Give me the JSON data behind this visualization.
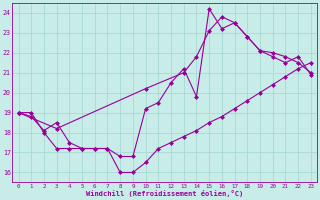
{
  "xlabel": "Windchill (Refroidissement éolien,°C)",
  "bg_color": "#c8ece8",
  "grid_color": "#a8d8d4",
  "line_color": "#990099",
  "xlim": [
    -0.5,
    23.5
  ],
  "ylim": [
    15.5,
    24.5
  ],
  "xticks": [
    0,
    1,
    2,
    3,
    4,
    5,
    6,
    7,
    8,
    9,
    10,
    11,
    12,
    13,
    14,
    15,
    16,
    17,
    18,
    19,
    20,
    21,
    22,
    23
  ],
  "yticks": [
    16,
    17,
    18,
    19,
    20,
    21,
    22,
    23,
    24
  ],
  "line1_x": [
    0,
    1,
    2,
    3,
    4,
    5,
    6,
    7,
    8,
    9,
    10,
    11,
    12,
    13,
    14,
    15,
    16,
    17,
    18,
    19,
    20,
    21,
    22,
    23
  ],
  "line1_y": [
    19.0,
    18.8,
    18.1,
    18.5,
    17.5,
    17.2,
    17.2,
    17.2,
    16.0,
    16.0,
    16.5,
    17.2,
    17.5,
    17.8,
    18.1,
    18.5,
    18.8,
    19.2,
    19.6,
    20.0,
    20.4,
    20.8,
    21.2,
    21.5
  ],
  "line2_x": [
    0,
    1,
    2,
    3,
    4,
    5,
    6,
    7,
    8,
    9,
    10,
    11,
    12,
    13,
    14,
    15,
    16,
    17,
    18,
    19,
    20,
    21,
    22,
    23
  ],
  "line2_y": [
    19.0,
    19.0,
    18.0,
    17.2,
    17.2,
    17.2,
    17.2,
    17.2,
    16.8,
    16.8,
    19.2,
    19.5,
    20.5,
    21.2,
    19.8,
    24.2,
    23.2,
    23.5,
    22.8,
    22.1,
    21.8,
    21.5,
    21.8,
    20.9
  ],
  "line3_x": [
    0,
    3,
    10,
    13,
    14,
    15,
    16,
    17,
    18,
    19,
    20,
    21,
    22,
    23
  ],
  "line3_y": [
    19.0,
    18.2,
    20.2,
    21.0,
    21.8,
    23.1,
    23.8,
    23.5,
    22.8,
    22.1,
    22.0,
    21.8,
    21.5,
    21.0
  ]
}
